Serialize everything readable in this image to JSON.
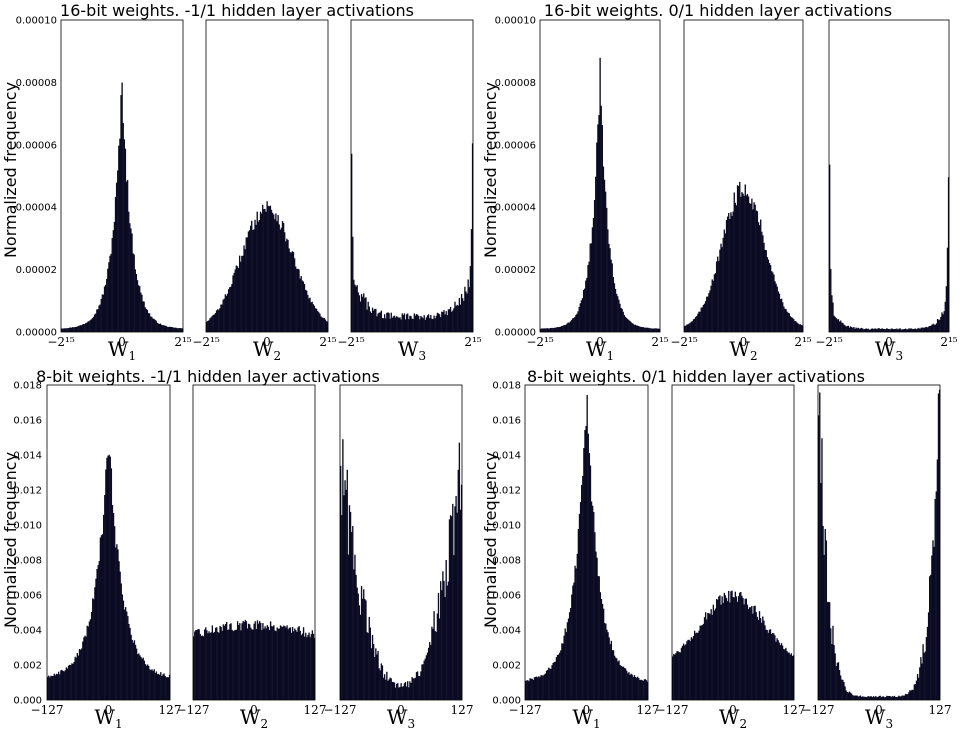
{
  "figure": {
    "ylabel": "Normalized frequency"
  },
  "chart_data": [
    {
      "type": "bar",
      "title": "16-bit weights. -1/1 hidden layer activations",
      "ylabel": "Normalized frequency",
      "ylim": [
        0,
        0.0001
      ],
      "yticks": [
        "0.00000",
        "0.00002",
        "0.00004",
        "0.00006",
        "0.00008",
        "0.00010"
      ],
      "subplots": [
        {
          "xlabel": "W",
          "xlabel_sub": "1",
          "xticks": [
            "−2¹⁵",
            "0",
            "2¹⁵"
          ],
          "xlim": [
            -32768,
            32768
          ],
          "shape": "laplace",
          "peak": 8e-05,
          "width": 0.16,
          "floor": 1e-06
        },
        {
          "xlabel": "W",
          "xlabel_sub": "2",
          "xticks": [
            "−2¹⁵",
            "0",
            "2¹⁵"
          ],
          "xlim": [
            -32768,
            32768
          ],
          "shape": "gauss",
          "peak": 4e-05,
          "width": 0.42,
          "floor": 1e-06
        },
        {
          "xlabel": "W",
          "xlabel_sub": "3",
          "xticks": [
            "−2¹⁵",
            "",
            "2¹⁵"
          ],
          "xlim": [
            -32768,
            32768
          ],
          "shape": "u",
          "center": 5e-06,
          "edge": 2e-05,
          "edge_peak": 0.0001,
          "width": 0.22
        }
      ]
    },
    {
      "type": "bar",
      "title": "16-bit weights. 0/1 hidden layer activations",
      "ylabel": "Normalized frequency",
      "ylim": [
        0,
        0.0001
      ],
      "yticks": [
        "0.00000",
        "0.00002",
        "0.00004",
        "0.00006",
        "0.00008",
        "0.00010"
      ],
      "subplots": [
        {
          "xlabel": "W",
          "xlabel_sub": "1",
          "xticks": [
            "−2¹⁵",
            "0",
            "2¹⁵"
          ],
          "xlim": [
            -32768,
            32768
          ],
          "shape": "laplace",
          "peak": 8.4e-05,
          "width": 0.14,
          "floor": 1e-06
        },
        {
          "xlabel": "W",
          "xlabel_sub": "2",
          "xticks": [
            "−2¹⁵",
            "0",
            "2¹⁵"
          ],
          "xlim": [
            -32768,
            32768
          ],
          "shape": "gauss",
          "peak": 4.6e-05,
          "width": 0.36,
          "floor": 1e-06
        },
        {
          "xlabel": "W",
          "xlabel_sub": "3",
          "xticks": [
            "−2¹⁵",
            "0",
            "2¹⁵"
          ],
          "xlim": [
            -32768,
            32768
          ],
          "shape": "u",
          "center": 1e-06,
          "edge": 1e-05,
          "edge_peak": 0.0001,
          "width": 0.14
        }
      ]
    },
    {
      "type": "bar",
      "title": "8-bit weights. -1/1 hidden layer activations",
      "ylabel": "Normalized frequency",
      "ylim": [
        0,
        0.018
      ],
      "yticks": [
        "0.000",
        "0.002",
        "0.004",
        "0.006",
        "0.008",
        "0.010",
        "0.012",
        "0.014",
        "0.016",
        "0.018"
      ],
      "subplots": [
        {
          "xlabel": "W",
          "xlabel_sub": "1",
          "xticks": [
            "−127",
            "0",
            "127"
          ],
          "xlim": [
            -127,
            127
          ],
          "shape": "laplace",
          "peak": 0.015,
          "width": 0.22,
          "floor": 0.0012
        },
        {
          "xlabel": "W",
          "xlabel_sub": "2",
          "xticks": [
            "−127",
            "0",
            "127"
          ],
          "xlim": [
            -127,
            127
          ],
          "shape": "flat",
          "base": 0.0037,
          "bump": 0.0006
        },
        {
          "xlabel": "W",
          "xlabel_sub": "3",
          "xticks": [
            "−127",
            "0",
            "127"
          ],
          "xlim": [
            -127,
            127
          ],
          "shape": "u",
          "center": 0.0008,
          "edge": 0.014,
          "edge_peak": 0.015,
          "width": 0.45
        }
      ]
    },
    {
      "type": "bar",
      "title": "8-bit weights. 0/1 hidden layer activations",
      "ylabel": "Normalized frequency",
      "ylim": [
        0,
        0.018
      ],
      "yticks": [
        "0.000",
        "0.002",
        "0.004",
        "0.006",
        "0.008",
        "0.010",
        "0.012",
        "0.014",
        "0.016",
        "0.018"
      ],
      "subplots": [
        {
          "xlabel": "W",
          "xlabel_sub": "1",
          "xticks": [
            "−127",
            "0",
            "127"
          ],
          "xlim": [
            -127,
            127
          ],
          "shape": "laplace",
          "peak": 0.0172,
          "width": 0.2,
          "floor": 0.001
        },
        {
          "xlabel": "W",
          "xlabel_sub": "2",
          "xticks": [
            "−127",
            "0",
            "127"
          ],
          "xlim": [
            -127,
            127
          ],
          "shape": "gauss",
          "peak": 0.0059,
          "width": 0.55,
          "floor": 0.0017
        },
        {
          "xlabel": "W",
          "xlabel_sub": "3",
          "xticks": [
            "−127",
            "0",
            "127"
          ],
          "xlim": [
            -127,
            127
          ],
          "shape": "u",
          "center": 0.0002,
          "edge": 0.018,
          "edge_peak": 0.018,
          "width": 0.12
        }
      ]
    }
  ]
}
